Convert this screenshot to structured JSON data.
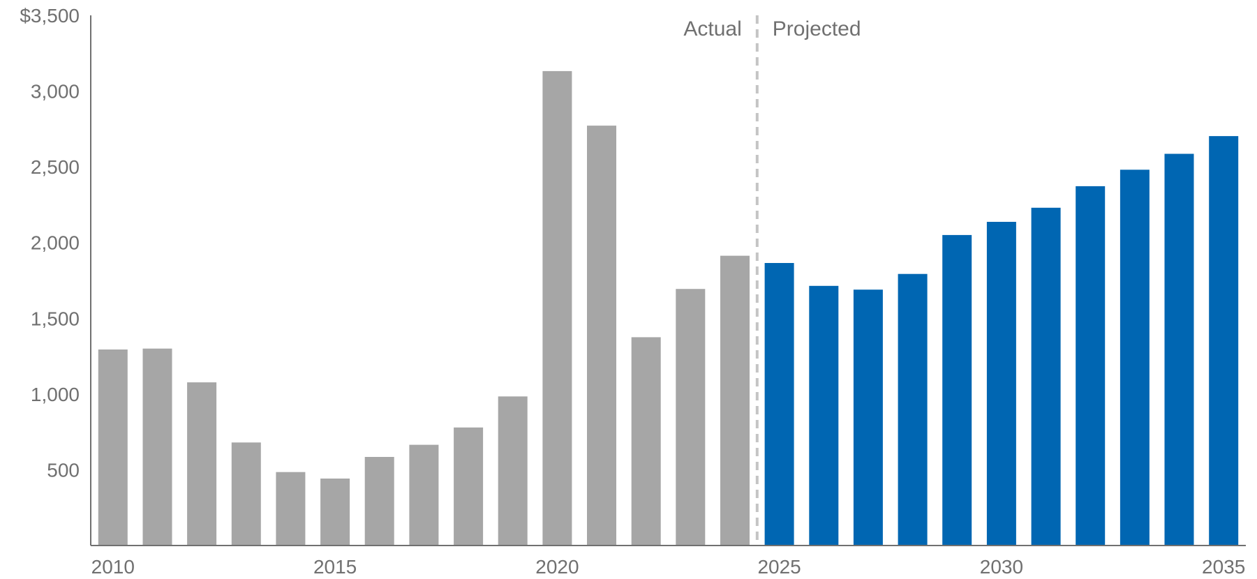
{
  "chart_data": {
    "type": "bar",
    "title": "",
    "xlabel": "",
    "ylabel": "",
    "categories": [
      "2010",
      "2011",
      "2012",
      "2013",
      "2014",
      "2015",
      "2016",
      "2017",
      "2018",
      "2019",
      "2020",
      "2021",
      "2022",
      "2023",
      "2024",
      "2025",
      "2026",
      "2027",
      "2028",
      "2029",
      "2030",
      "2031",
      "2032",
      "2033",
      "2034",
      "2035"
    ],
    "values": [
      1294,
      1300,
      1077,
      680,
      485,
      442,
      585,
      665,
      779,
      984,
      3132,
      2772,
      1375,
      1694,
      1913,
      1865,
      1714,
      1689,
      1793,
      2050,
      2137,
      2230,
      2372,
      2481,
      2586,
      2703
    ],
    "ylim": [
      0,
      3500
    ],
    "y_ticks": [
      500,
      1000,
      1500,
      2000,
      2500,
      3000,
      3500
    ],
    "y_tick_labels": [
      "500",
      "1,000",
      "1,500",
      "2,000",
      "2,500",
      "3,000",
      "$3,500"
    ],
    "x_tick_labels": [
      "2010",
      "2015",
      "2020",
      "2025",
      "2030",
      "2035"
    ],
    "actual_years": [
      "2010",
      "2011",
      "2012",
      "2013",
      "2014",
      "2015",
      "2016",
      "2017",
      "2018",
      "2019",
      "2020",
      "2021",
      "2022",
      "2023",
      "2024"
    ],
    "projected_years": [
      "2025",
      "2026",
      "2027",
      "2028",
      "2029",
      "2030",
      "2031",
      "2032",
      "2033",
      "2034",
      "2035"
    ],
    "divider_label_left": "Actual",
    "divider_label_right": "Projected",
    "colors": {
      "actual": "#a6a6a6",
      "projected": "#0066b2",
      "axis": "#707070",
      "divider": "#c4c4c4"
    },
    "grid": false,
    "legend": "none"
  }
}
